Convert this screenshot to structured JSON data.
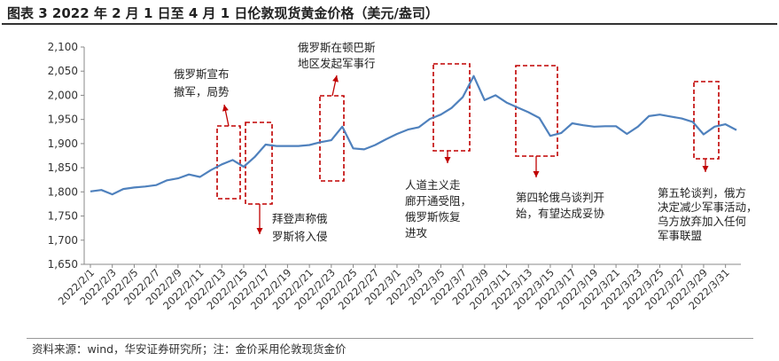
{
  "title": "图表 3 2022 年 2 月 1 日至 4 月 1 日伦敦现货黄金价格（美元/盎司）",
  "source": "资料来源：wind，华安证券研究所；注：金价采用伦敦现货金价",
  "chart_data": {
    "type": "line",
    "title": "图表 3 2022 年 2 月 1 日至 4 月 1 日伦敦现货黄金价格（美元/盎司）",
    "xlabel": "",
    "ylabel": "",
    "ylim": [
      1650,
      2100
    ],
    "yticks": [
      "1,650",
      "1,700",
      "1,750",
      "1,800",
      "1,850",
      "1,900",
      "1,950",
      "2,000",
      "2,050",
      "2,100"
    ],
    "xtick_labels": [
      "2022/2/1",
      "2022/2/3",
      "2022/2/5",
      "2022/2/7",
      "2022/2/9",
      "2022/2/11",
      "2022/2/13",
      "2022/2/15",
      "2022/2/17",
      "2022/2/19",
      "2022/2/21",
      "2022/2/23",
      "2022/2/25",
      "2022/2/27",
      "2022/3/1",
      "2022/3/3",
      "2022/3/5",
      "2022/3/7",
      "2022/3/9",
      "2022/3/11",
      "2022/3/13",
      "2022/3/15",
      "2022/3/17",
      "2022/3/19",
      "2022/3/21",
      "2022/3/23",
      "2022/3/25",
      "2022/3/27",
      "2022/3/29",
      "2022/3/31"
    ],
    "grid": false,
    "series": [
      {
        "color": "#4f81bd",
        "x": [
          "2022/2/1",
          "2022/2/2",
          "2022/2/3",
          "2022/2/4",
          "2022/2/5",
          "2022/2/6",
          "2022/2/7",
          "2022/2/8",
          "2022/2/9",
          "2022/2/10",
          "2022/2/11",
          "2022/2/12",
          "2022/2/13",
          "2022/2/14",
          "2022/2/15",
          "2022/2/16",
          "2022/2/17",
          "2022/2/18",
          "2022/2/19",
          "2022/2/20",
          "2022/2/21",
          "2022/2/22",
          "2022/2/23",
          "2022/2/24",
          "2022/2/25",
          "2022/2/26",
          "2022/2/27",
          "2022/2/28",
          "2022/3/1",
          "2022/3/2",
          "2022/3/3",
          "2022/3/4",
          "2022/3/5",
          "2022/3/6",
          "2022/3/7",
          "2022/3/8",
          "2022/3/9",
          "2022/3/10",
          "2022/3/11",
          "2022/3/12",
          "2022/3/13",
          "2022/3/14",
          "2022/3/15",
          "2022/3/16",
          "2022/3/17",
          "2022/3/18",
          "2022/3/19",
          "2022/3/20",
          "2022/3/21",
          "2022/3/22",
          "2022/3/23",
          "2022/3/24",
          "2022/3/25",
          "2022/3/26",
          "2022/3/27",
          "2022/3/28",
          "2022/3/29",
          "2022/3/30",
          "2022/3/31",
          "2022/4/1"
        ],
        "values": [
          1801,
          1804,
          1795,
          1806,
          1809,
          1811,
          1814,
          1824,
          1828,
          1836,
          1831,
          1845,
          1857,
          1866,
          1852,
          1872,
          1898,
          1895,
          1895,
          1895,
          1897,
          1903,
          1907,
          1935,
          1890,
          1888,
          1897,
          1909,
          1920,
          1929,
          1934,
          1951,
          1960,
          1974,
          1996,
          2040,
          1990,
          2000,
          1985,
          1975,
          1965,
          1953,
          1916,
          1922,
          1942,
          1938,
          1935,
          1936,
          1936,
          1920,
          1935,
          1957,
          1960,
          1956,
          1952,
          1945,
          1919,
          1935,
          1940,
          1928
        ]
      }
    ],
    "annotations": [
      {
        "lines": [
          "俄罗斯宣布",
          "撤军，局势"
        ]
      },
      {
        "lines": [
          "俄罗斯在顿巴斯",
          "地区发起军事行"
        ]
      },
      {
        "lines": [
          "拜登声称俄",
          "罗斯将入侵"
        ]
      },
      {
        "lines": [
          "人道主义走",
          "廊开通受阻，",
          "俄罗斯恢复",
          "进攻"
        ]
      },
      {
        "lines": [
          "第四轮俄乌谈判开",
          "始，有望达成妥协"
        ]
      },
      {
        "lines": [
          "第五轮谈判，俄方",
          "决定减少军事活动，",
          "乌方放弃加入任何",
          "军事联盟"
        ]
      }
    ]
  }
}
